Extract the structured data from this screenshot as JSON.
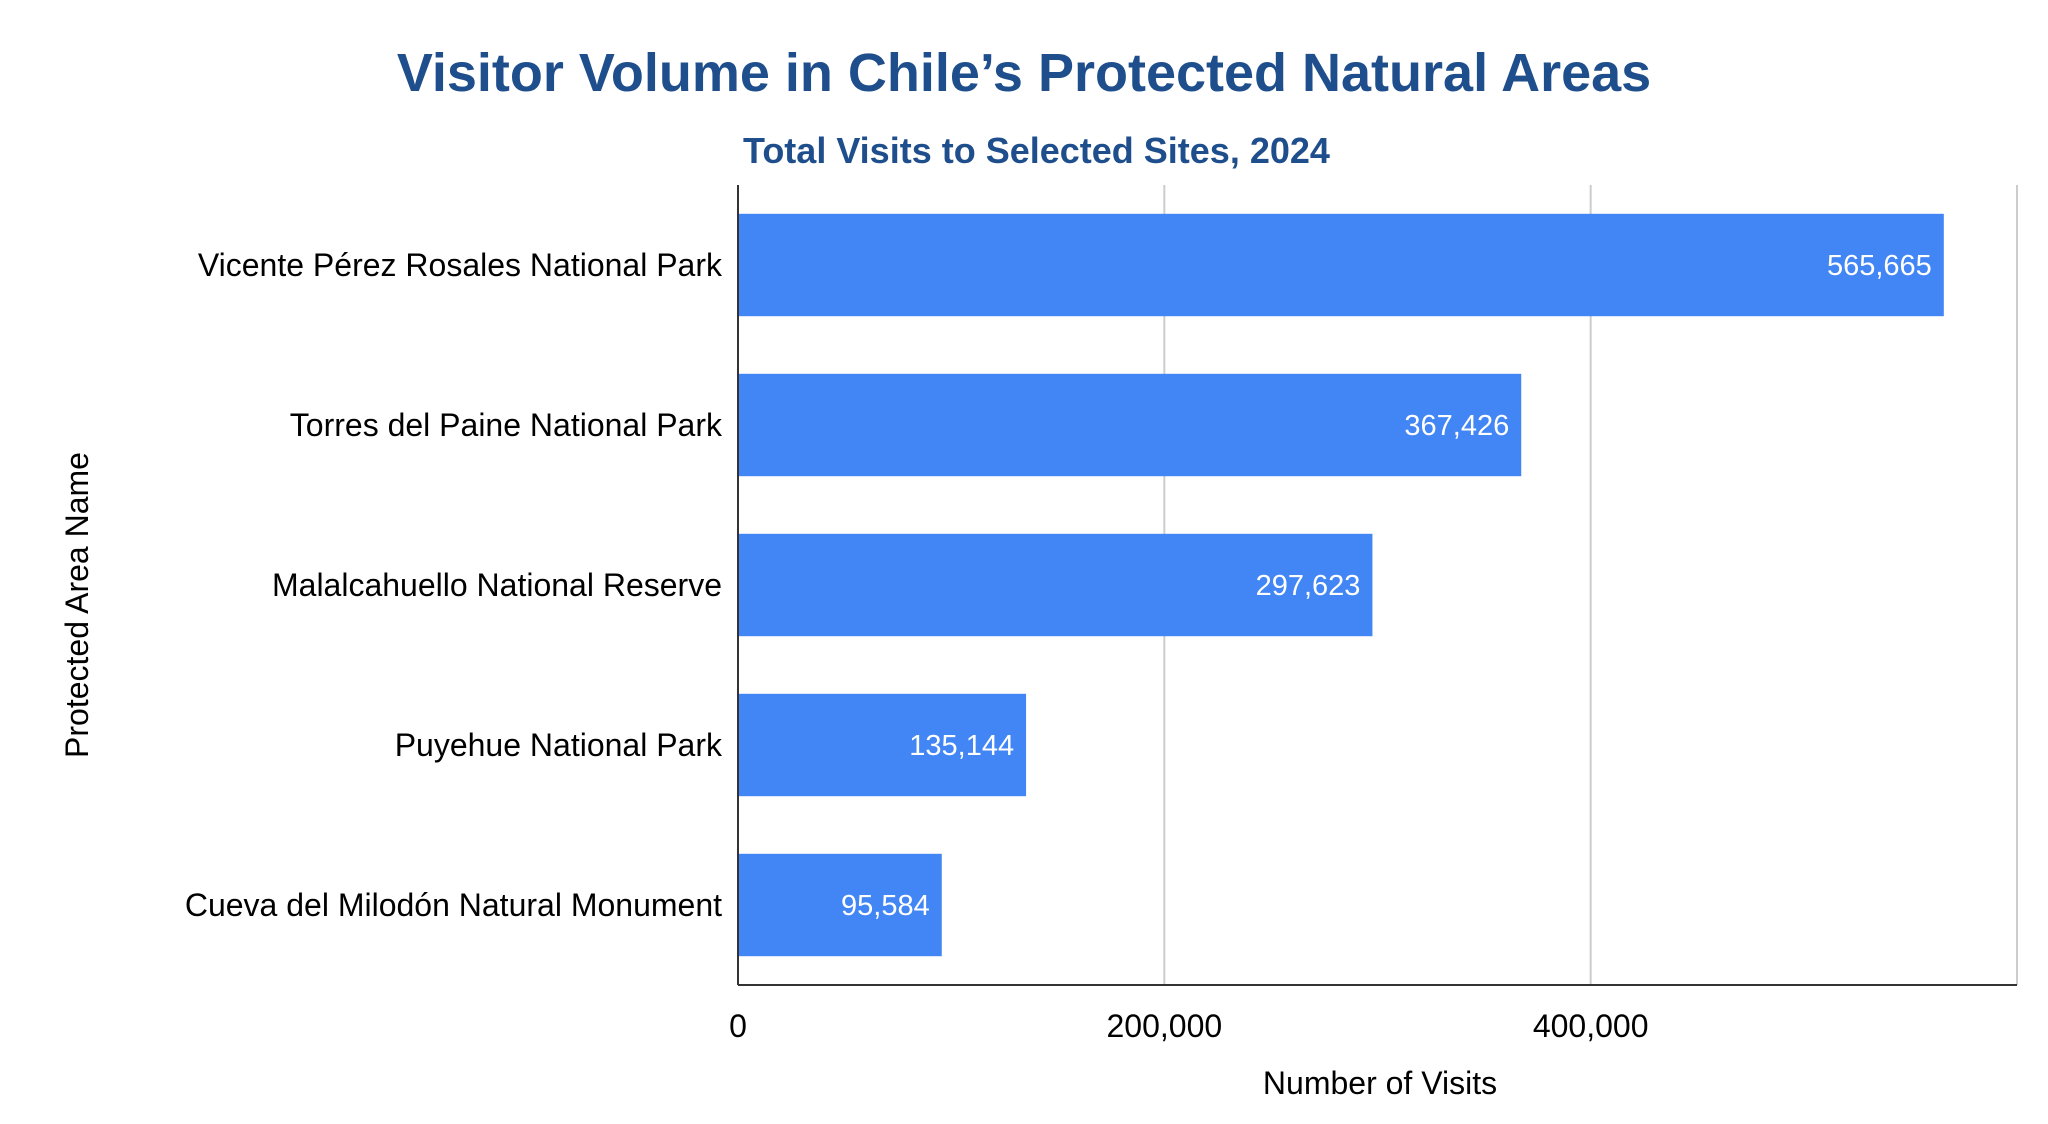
{
  "chart_data": {
    "type": "bar",
    "orientation": "horizontal",
    "title": "Visitor Volume in Chile’s Protected Natural Areas",
    "subtitle": "Total Visits to Selected Sites, 2024",
    "xlabel": "Number of Visits",
    "ylabel": "Protected Area Name",
    "categories": [
      "Vicente Pérez Rosales National Park",
      "Torres del Paine National Park",
      "Malalcahuello National Reserve",
      "Puyehue National Park",
      "Cueva del Milodón Natural Monument"
    ],
    "values": [
      565665,
      367426,
      297623,
      135144,
      95584
    ],
    "value_labels": [
      "565,665",
      "367,426",
      "297,623",
      "135,144",
      "95,584"
    ],
    "xlim": [
      0,
      600000
    ],
    "xticks": [
      0,
      200000,
      400000
    ],
    "xtick_labels": [
      "0",
      "200,000",
      "400,000"
    ],
    "grid": "vertical",
    "legend": "none",
    "bar_color": "#4285f4",
    "title_color": "#1f4e8c"
  }
}
